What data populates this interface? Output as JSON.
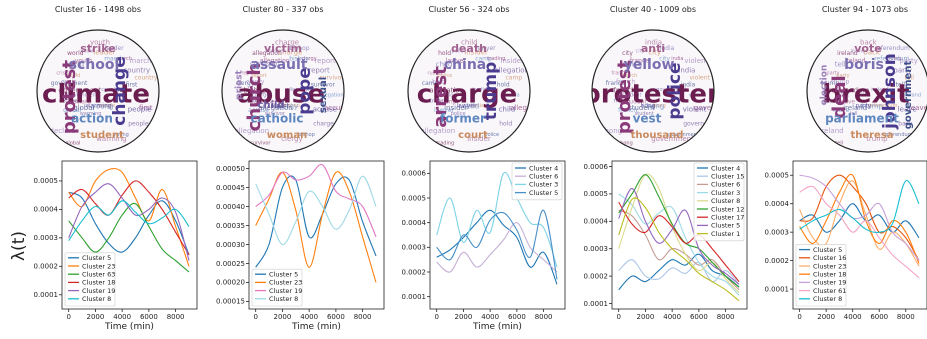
{
  "ylabel": "λ(t)",
  "chart_data": [
    {
      "type": "line",
      "title": "Cluster 16 - 1498 obs",
      "words": {
        "big": [
          "climate",
          "protest",
          "change",
          "school",
          "action",
          "strike",
          "student"
        ],
        "small": [
          "country",
          "global",
          "youth",
          "people",
          "government",
          "march",
          "warming",
          "world",
          "first",
          "declare",
          "leader",
          "young",
          "crisis"
        ]
      },
      "xlabel": "Time (min)",
      "x_ticks": [
        0,
        2000,
        4000,
        6000,
        8000
      ],
      "y_ticks": [
        "0.0001",
        "0.0002",
        "0.0003",
        "0.0004",
        "0.0005"
      ],
      "xlim": [
        -500,
        9600
      ],
      "ylim": [
        5e-05,
        0.00057
      ],
      "x": [
        0,
        1000,
        2000,
        3000,
        4000,
        5000,
        6000,
        7000,
        8000,
        9000
      ],
      "legend_position": "bottom-left",
      "series": [
        {
          "name": "Cluster 5",
          "color": "#1f77b4",
          "values": [
            0.00046,
            0.00044,
            0.00035,
            0.00028,
            0.00025,
            0.0003,
            0.00038,
            0.00043,
            0.00036,
            0.00024
          ]
        },
        {
          "name": "Cluster 23",
          "color": "#ff7f0e",
          "values": [
            0.00046,
            0.00041,
            0.0005,
            0.00054,
            0.00053,
            0.00044,
            0.00036,
            0.00047,
            0.00034,
            0.0002
          ]
        },
        {
          "name": "Cluster 63",
          "color": "#2ca02c",
          "values": [
            0.00036,
            0.0003,
            0.00025,
            0.0003,
            0.00038,
            0.00042,
            0.00034,
            0.00026,
            0.00022,
            0.00018
          ]
        },
        {
          "name": "Cluster 18",
          "color": "#d62728",
          "values": [
            0.00044,
            0.00047,
            0.00042,
            0.00038,
            0.00045,
            0.0005,
            0.00046,
            0.0004,
            0.00032,
            0.00024
          ]
        },
        {
          "name": "Cluster 19",
          "color": "#9467bd",
          "values": [
            0.0003,
            0.00041,
            0.00046,
            0.00049,
            0.00044,
            0.00038,
            0.0004,
            0.00044,
            0.00039,
            0.00022
          ]
        },
        {
          "name": "Cluster 8",
          "color": "#17becf",
          "values": [
            0.00029,
            0.00036,
            0.00041,
            0.00038,
            0.00043,
            0.00039,
            0.00035,
            0.00037,
            0.0004,
            0.00034
          ]
        }
      ]
    },
    {
      "type": "line",
      "title": "Cluster 80 - 337 obs",
      "words": {
        "big": [
          "abuse",
          "church",
          "pope",
          "assault",
          "catholic",
          "victim",
          "woman",
          "sexual",
          "priest",
          "child"
        ],
        "small": [
          "allegation",
          "accuse",
          "charge",
          "bishop",
          "clergy",
          "report",
          "survivor"
        ]
      },
      "xlabel": "Time (min)",
      "x_ticks": [
        0,
        2000,
        4000,
        6000,
        8000
      ],
      "y_ticks": [
        "0.00015",
        "0.00020",
        "0.00025",
        "0.00030",
        "0.00035",
        "0.00040",
        "0.00045",
        "0.00050"
      ],
      "xlim": [
        -500,
        9600
      ],
      "ylim": [
        0.00013,
        0.00052
      ],
      "x": [
        0,
        1000,
        2000,
        3000,
        4000,
        5000,
        6000,
        7000,
        8000,
        9000
      ],
      "legend_position": "bottom-left",
      "series": [
        {
          "name": "Cluster 5",
          "color": "#1f77b4",
          "values": [
            0.00024,
            0.0003,
            0.00045,
            0.00047,
            0.00032,
            0.00038,
            0.00046,
            0.00047,
            0.00036,
            0.00027
          ]
        },
        {
          "name": "Cluster 23",
          "color": "#ff7f0e",
          "values": [
            0.00035,
            0.00042,
            0.00049,
            0.00039,
            0.00024,
            0.00038,
            0.00049,
            0.00044,
            0.00032,
            0.0002
          ]
        },
        {
          "name": "Cluster 19",
          "color": "#e377c2",
          "values": [
            0.0004,
            0.00043,
            0.00049,
            0.00047,
            0.00048,
            0.00051,
            0.00044,
            0.00042,
            0.0004,
            0.00032
          ]
        },
        {
          "name": "Cluster 8",
          "color": "#9ed9e6",
          "values": [
            0.00046,
            0.00038,
            0.0003,
            0.00036,
            0.00044,
            0.0004,
            0.00034,
            0.00039,
            0.00048,
            0.0004
          ]
        }
      ]
    },
    {
      "type": "line",
      "title": "Cluster 56 - 324 obs",
      "words": {
        "big": [
          "charge",
          "arrest",
          "trump",
          "china",
          "former",
          "death",
          "court"
        ],
        "small": [
          "trading",
          "lawyer",
          "child",
          "russia",
          "camp",
          "insider",
          "police",
          "hold",
          "allegation"
        ]
      },
      "xlabel": "Time (min)",
      "x_ticks": [
        0,
        2000,
        4000,
        6000,
        8000
      ],
      "y_ticks": [
        "0.0001",
        "0.0002",
        "0.0003",
        "0.0004",
        "0.0005",
        "0.0006"
      ],
      "xlim": [
        -500,
        9600
      ],
      "ylim": [
        5e-05,
        0.00065
      ],
      "x": [
        0,
        1000,
        2000,
        3000,
        4000,
        5000,
        6000,
        7000,
        8000,
        9000
      ],
      "legend_position": "top-right",
      "series": [
        {
          "name": "Cluster 4",
          "color": "#1f77b4",
          "values": [
            0.00026,
            0.00029,
            0.00034,
            0.0004,
            0.00045,
            0.00039,
            0.00034,
            0.00022,
            0.00028,
            0.00015
          ]
        },
        {
          "name": "Cluster 6",
          "color": "#c5b0d5",
          "values": [
            0.00024,
            0.0002,
            0.00028,
            0.00022,
            0.00027,
            0.00033,
            0.0004,
            0.0003,
            0.00025,
            0.0002
          ]
        },
        {
          "name": "Cluster 3",
          "color": "#7fd3e6",
          "values": [
            0.00035,
            0.0005,
            0.00032,
            0.00045,
            0.00036,
            0.0006,
            0.0005,
            0.0004,
            0.00038,
            0.00022
          ]
        },
        {
          "name": "Cluster 5",
          "color": "#4a90c8",
          "values": [
            0.0003,
            0.00025,
            0.00035,
            0.0003,
            0.00041,
            0.00044,
            0.00037,
            0.00026,
            0.00045,
            0.00017
          ]
        }
      ]
    },
    {
      "type": "line",
      "title": "Cluster 40 - 1009 obs",
      "words": {
        "big": [
          "protester",
          "protest",
          "police",
          "yellow",
          "vest",
          "anti",
          "thousand"
        ],
        "small": [
          "government",
          "french",
          "india",
          "hong",
          "france",
          "violent",
          "student",
          "city"
        ]
      },
      "xlabel": "",
      "x_ticks": [
        0,
        2000,
        4000,
        6000,
        8000
      ],
      "y_ticks": [
        "0.0001",
        "0.0002",
        "0.0003",
        "0.0004",
        "0.0005",
        "0.0006"
      ],
      "xlim": [
        -500,
        9600
      ],
      "ylim": [
        8e-05,
        0.00062
      ],
      "x": [
        0,
        1000,
        2000,
        3000,
        4000,
        5000,
        6000,
        7000,
        8000,
        9000
      ],
      "legend_position": "top-right",
      "series": [
        {
          "name": "Cluster 4",
          "color": "#1f77b4",
          "values": [
            0.00015,
            0.0002,
            0.00018,
            0.00022,
            0.00026,
            0.00024,
            0.00028,
            0.00022,
            0.0002,
            0.00016
          ]
        },
        {
          "name": "Cluster 15",
          "color": "#aec7e8",
          "values": [
            0.00022,
            0.00026,
            0.0002,
            0.00019,
            0.00023,
            0.00021,
            0.00025,
            0.00018,
            0.00022,
            0.00017
          ]
        },
        {
          "name": "Cluster 6",
          "color": "#c49c94",
          "values": [
            0.00044,
            0.00042,
            0.00035,
            0.00026,
            0.0003,
            0.00028,
            0.00024,
            0.00026,
            0.0002,
            0.00015
          ]
        },
        {
          "name": "Cluster 3",
          "color": "#9edae5",
          "values": [
            0.0005,
            0.00046,
            0.00039,
            0.00043,
            0.00045,
            0.00034,
            0.00025,
            0.0002,
            0.00018,
            0.00013
          ]
        },
        {
          "name": "Cluster 8",
          "color": "#dbdb8d",
          "values": [
            0.0003,
            0.00045,
            0.00057,
            0.00052,
            0.00038,
            0.00028,
            0.00022,
            0.00025,
            0.00019,
            0.00014
          ]
        },
        {
          "name": "Cluster 12",
          "color": "#2ca02c",
          "values": [
            0.00043,
            0.0005,
            0.00057,
            0.00049,
            0.00039,
            0.00032,
            0.0003,
            0.00025,
            0.0002,
            0.00016
          ]
        },
        {
          "name": "Cluster 17",
          "color": "#d62728",
          "values": [
            0.00047,
            0.00039,
            0.00036,
            0.00042,
            0.00038,
            0.00032,
            0.00035,
            0.0003,
            0.00024,
            0.00018
          ]
        },
        {
          "name": "Cluster 5",
          "color": "#9467bd",
          "values": [
            0.00041,
            0.00052,
            0.0004,
            0.00032,
            0.00037,
            0.00044,
            0.0003,
            0.00024,
            0.00021,
            0.00017
          ]
        },
        {
          "name": "Cluster 1",
          "color": "#bcbd22",
          "values": [
            0.00035,
            0.00048,
            0.00045,
            0.00036,
            0.0003,
            0.00026,
            0.00021,
            0.00018,
            0.00015,
            0.00011
          ]
        }
      ]
    },
    {
      "type": "line",
      "title": "Cluster 94 - 1073 obs",
      "words": {
        "big": [
          "brexit",
          "deal",
          "johnson",
          "boris",
          "parliament",
          "vote",
          "theresa",
          "government",
          "election"
        ],
        "small": [
          "ireland",
          "leave",
          "back",
          "referendum",
          "trump",
          "party",
          "tell"
        ]
      },
      "xlabel": "",
      "x_ticks": [
        0,
        2000,
        4000,
        6000,
        8000
      ],
      "y_ticks": [
        "0.0001",
        "0.0002",
        "0.0003",
        "0.0004",
        "0.0005"
      ],
      "xlim": [
        -500,
        9600
      ],
      "ylim": [
        3e-05,
        0.00055
      ],
      "x": [
        0,
        1000,
        2000,
        3000,
        4000,
        5000,
        6000,
        7000,
        8000,
        9000
      ],
      "legend_position": "bottom-left",
      "series": [
        {
          "name": "Cluster 5",
          "color": "#1f77b4",
          "values": [
            0.00034,
            0.00036,
            0.0003,
            0.00034,
            0.0004,
            0.00034,
            0.00036,
            0.0003,
            0.00034,
            0.00028
          ]
        },
        {
          "name": "Cluster 16",
          "color": "#e6550d",
          "values": [
            0.00034,
            0.00035,
            0.00046,
            0.0005,
            0.00046,
            0.0004,
            0.0003,
            0.00032,
            0.00028,
            0.0002
          ]
        },
        {
          "name": "Cluster 23",
          "color": "#fdae6b",
          "values": [
            0.00038,
            0.00028,
            0.00026,
            0.0004,
            0.00048,
            0.00036,
            0.00024,
            0.0003,
            0.00026,
            0.00018
          ]
        },
        {
          "name": "Cluster 18",
          "color": "#ff7f0e",
          "values": [
            0.00032,
            0.00026,
            0.00034,
            0.00044,
            0.0005,
            0.00034,
            0.00026,
            0.00034,
            0.0003,
            0.00019
          ]
        },
        {
          "name": "Cluster 19",
          "color": "#c7a0d8",
          "values": [
            0.0005,
            0.00049,
            0.00046,
            0.0004,
            0.00035,
            0.00036,
            0.0004,
            0.0003,
            0.00026,
            0.0002
          ]
        },
        {
          "name": "Cluster 61",
          "color": "#f4a6c8",
          "values": [
            0.00044,
            0.00046,
            0.0004,
            0.00036,
            0.0003,
            0.00034,
            0.00028,
            0.00022,
            0.00018,
            0.00014
          ]
        },
        {
          "name": "Cluster 8",
          "color": "#17becf",
          "values": [
            0.00031,
            0.00034,
            0.00036,
            0.00038,
            0.00035,
            0.00031,
            0.0003,
            0.00033,
            0.00048,
            0.0004
          ]
        }
      ]
    }
  ]
}
